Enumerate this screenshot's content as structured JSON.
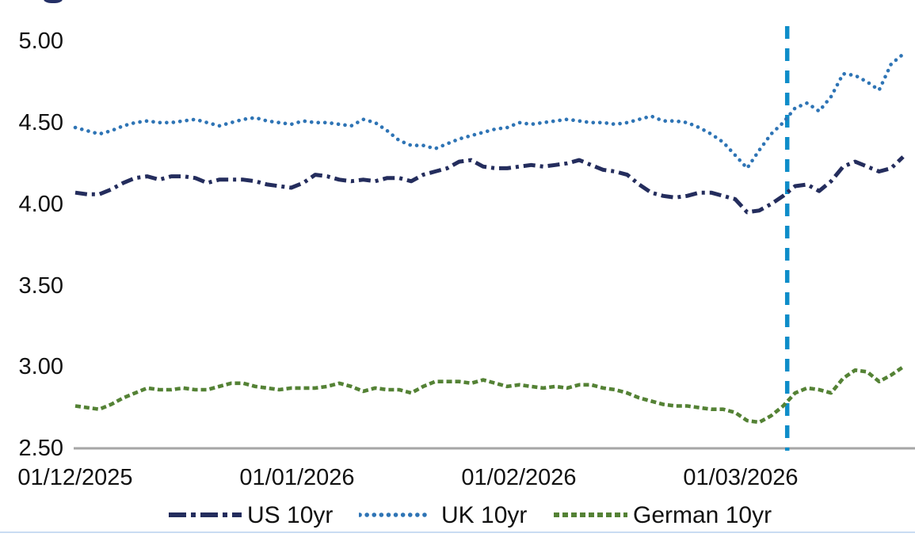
{
  "page": {
    "bottom_border_color": "#C9DCF2"
  },
  "chart_data": {
    "type": "line",
    "title": "",
    "xlabel": "",
    "ylabel": "",
    "ylim": [
      2.5,
      5.0
    ],
    "grid": false,
    "legend_position": "bottom",
    "axis_color": "#A6A6A6",
    "ytick_labels": [
      "5.00",
      "4.50",
      "4.00",
      "3.50",
      "3.00",
      "2.50"
    ],
    "xtick_labels": [
      "01/12/2025",
      "01/01/2026",
      "01/02/2026",
      "01/03/2026"
    ],
    "vline": {
      "color": "#0E8DC9",
      "style": "dashed",
      "x_fraction": 0.86
    },
    "series": [
      {
        "name": "US 10yr",
        "color": "#242D5D",
        "style": "dash-dot",
        "values": [
          4.07,
          4.06,
          4.06,
          4.09,
          4.13,
          4.16,
          4.17,
          4.15,
          4.17,
          4.17,
          4.16,
          4.13,
          4.15,
          4.15,
          4.15,
          4.14,
          4.12,
          4.11,
          4.1,
          4.13,
          4.18,
          4.17,
          4.15,
          4.14,
          4.15,
          4.14,
          4.16,
          4.16,
          4.14,
          4.18,
          4.2,
          4.22,
          4.26,
          4.27,
          4.23,
          4.22,
          4.22,
          4.23,
          4.24,
          4.23,
          4.24,
          4.25,
          4.27,
          4.24,
          4.21,
          4.2,
          4.18,
          4.12,
          4.07,
          4.05,
          4.04,
          4.05,
          4.07,
          4.07,
          4.05,
          4.03,
          3.95,
          3.96,
          4.0,
          4.05,
          4.11,
          4.12,
          4.08,
          4.14,
          4.23,
          4.26,
          4.23,
          4.2,
          4.22,
          4.29
        ]
      },
      {
        "name": "UK 10yr",
        "color": "#2E74B5",
        "style": "dotted",
        "values": [
          4.47,
          4.45,
          4.43,
          4.45,
          4.48,
          4.5,
          4.51,
          4.5,
          4.5,
          4.51,
          4.52,
          4.5,
          4.48,
          4.5,
          4.52,
          4.53,
          4.51,
          4.5,
          4.49,
          4.51,
          4.5,
          4.5,
          4.49,
          4.48,
          4.52,
          4.5,
          4.45,
          4.39,
          4.36,
          4.36,
          4.34,
          4.37,
          4.4,
          4.42,
          4.44,
          4.46,
          4.47,
          4.5,
          4.49,
          4.5,
          4.51,
          4.52,
          4.51,
          4.5,
          4.5,
          4.49,
          4.5,
          4.52,
          4.54,
          4.51,
          4.51,
          4.5,
          4.47,
          4.43,
          4.38,
          4.3,
          4.22,
          4.33,
          4.43,
          4.5,
          4.59,
          4.62,
          4.57,
          4.66,
          4.8,
          4.79,
          4.75,
          4.7,
          4.86,
          4.92
        ]
      },
      {
        "name": "German 10yr",
        "color": "#548235",
        "style": "dashed",
        "values": [
          2.76,
          2.75,
          2.74,
          2.77,
          2.81,
          2.84,
          2.87,
          2.86,
          2.86,
          2.87,
          2.86,
          2.86,
          2.88,
          2.9,
          2.9,
          2.88,
          2.87,
          2.86,
          2.87,
          2.87,
          2.87,
          2.88,
          2.9,
          2.88,
          2.85,
          2.87,
          2.86,
          2.86,
          2.84,
          2.88,
          2.91,
          2.91,
          2.91,
          2.9,
          2.92,
          2.9,
          2.88,
          2.89,
          2.88,
          2.87,
          2.88,
          2.87,
          2.89,
          2.89,
          2.87,
          2.86,
          2.84,
          2.81,
          2.79,
          2.77,
          2.76,
          2.76,
          2.75,
          2.74,
          2.74,
          2.72,
          2.67,
          2.66,
          2.7,
          2.76,
          2.84,
          2.87,
          2.86,
          2.84,
          2.93,
          2.98,
          2.97,
          2.91,
          2.95,
          3.0
        ]
      }
    ]
  }
}
